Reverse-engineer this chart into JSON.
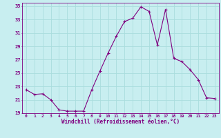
{
  "x": [
    0,
    1,
    2,
    3,
    4,
    5,
    6,
    7,
    8,
    9,
    10,
    11,
    12,
    13,
    14,
    15,
    16,
    17,
    18,
    19,
    20,
    21,
    22,
    23
  ],
  "y": [
    22.5,
    21.8,
    21.9,
    21.0,
    19.5,
    19.3,
    19.3,
    19.3,
    22.5,
    25.3,
    28.0,
    30.5,
    32.7,
    33.2,
    34.9,
    34.2,
    29.2,
    34.5,
    27.2,
    26.7,
    25.5,
    24.0,
    21.3,
    21.2
  ],
  "line_color": "#800080",
  "marker": "P",
  "marker_size": 2.5,
  "background_color": "#c8eef0",
  "grid_color": "#aadddd",
  "xlabel": "Windchill (Refroidissement éolien,°C)",
  "xlabel_color": "#800080",
  "tick_color": "#800080",
  "ylim": [
    19,
    35.5
  ],
  "yticks": [
    19,
    21,
    23,
    25,
    27,
    29,
    31,
    33,
    35
  ],
  "xlim": [
    -0.5,
    23.5
  ],
  "xticks": [
    0,
    1,
    2,
    3,
    4,
    5,
    6,
    7,
    8,
    9,
    10,
    11,
    12,
    13,
    14,
    15,
    16,
    17,
    18,
    19,
    20,
    21,
    22,
    23
  ]
}
